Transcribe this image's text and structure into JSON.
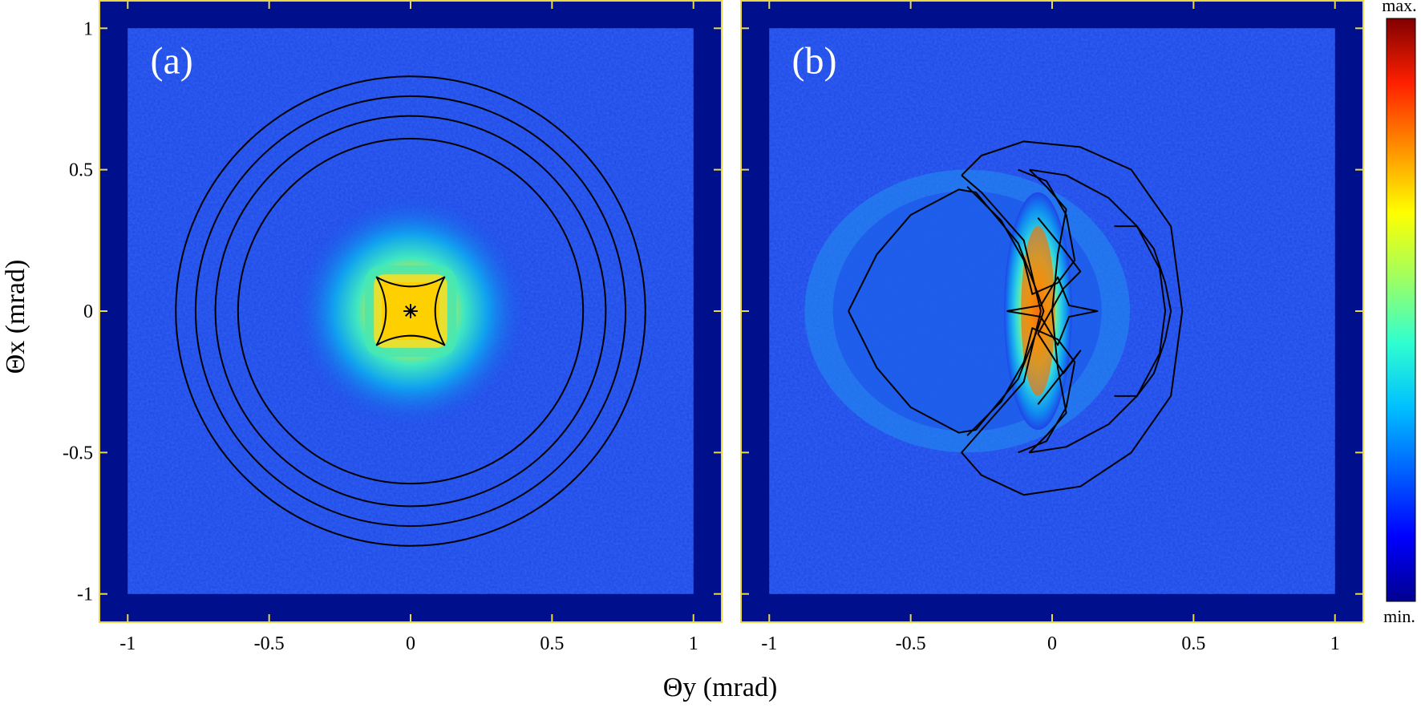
{
  "chart_data": [
    {
      "type": "heatmap",
      "panel_label": "(a)",
      "xlabel": "Θy (mrad)",
      "ylabel": "Θx (mrad)",
      "xlim": [
        -1.1,
        1.1
      ],
      "ylim": [
        -1.1,
        1.1
      ],
      "x_ticks": [
        "-1",
        "-0.5",
        "0",
        "0.5",
        "1"
      ],
      "y_ticks": [
        "1",
        "0.5",
        "0",
        "-0.5",
        "-1"
      ],
      "x_tick_values": [
        -1,
        -0.5,
        0,
        0.5,
        1
      ],
      "y_tick_values": [
        1,
        0.5,
        0,
        -0.5,
        -1
      ],
      "detector_extent": [
        -1,
        1
      ],
      "intensity_peak": {
        "center": [
          0,
          0
        ],
        "core_half_width": 0.12,
        "halo_radius": 0.42,
        "shape": "square"
      },
      "overlay_curves": [
        {
          "shape": "circle",
          "center": [
            0,
            0
          ],
          "radius": 0.61
        },
        {
          "shape": "circle",
          "center": [
            0,
            0
          ],
          "radius": 0.69
        },
        {
          "shape": "circle",
          "center": [
            0,
            0
          ],
          "radius": 0.76
        },
        {
          "shape": "circle",
          "center": [
            0,
            0
          ],
          "radius": 0.83
        },
        {
          "shape": "astroid",
          "center": [
            0,
            0
          ],
          "half_width": 0.12
        },
        {
          "shape": "star",
          "center": [
            0,
            0
          ],
          "size": 0.025
        }
      ]
    },
    {
      "type": "heatmap",
      "panel_label": "(b)",
      "xlabel": "Θy (mrad)",
      "xlim": [
        -1.1,
        1.1
      ],
      "ylim": [
        -1.1,
        1.1
      ],
      "x_ticks": [
        "-1",
        "-0.5",
        "0",
        "0.5",
        "1"
      ],
      "x_tick_values": [
        -1,
        -0.5,
        0,
        0.5,
        1
      ],
      "detector_extent": [
        -1,
        1
      ],
      "intensity_peak": {
        "shape": "crescent",
        "peak_y": -0.05,
        "peak_x": 0,
        "inner_radius": 0.3,
        "outer_radius": 0.5
      },
      "overlay_curves": [
        {
          "shape": "outer-lobe",
          "points": [
            [
              -0.72,
              0
            ],
            [
              -0.62,
              0.2
            ],
            [
              -0.5,
              0.34
            ],
            [
              -0.33,
              0.43
            ],
            [
              -0.27,
              0.42
            ],
            [
              -0.12,
              0.24
            ],
            [
              -0.05,
              0.06
            ],
            [
              -0.03,
              0
            ],
            [
              -0.05,
              -0.06
            ],
            [
              -0.12,
              -0.24
            ],
            [
              -0.27,
              -0.42
            ],
            [
              -0.33,
              -0.43
            ],
            [
              -0.5,
              -0.34
            ],
            [
              -0.62,
              -0.2
            ],
            [
              -0.72,
              0
            ]
          ]
        },
        {
          "shape": "big-arc",
          "points": [
            [
              -0.32,
              0.48
            ],
            [
              -0.25,
              0.55
            ],
            [
              -0.1,
              0.6
            ],
            [
              0.1,
              0.58
            ],
            [
              0.28,
              0.5
            ],
            [
              0.42,
              0.3
            ],
            [
              0.46,
              0
            ],
            [
              0.42,
              -0.3
            ],
            [
              0.28,
              -0.5
            ],
            [
              0.1,
              -0.62
            ],
            [
              -0.1,
              -0.65
            ],
            [
              -0.25,
              -0.58
            ],
            [
              -0.32,
              -0.5
            ],
            [
              -0.25,
              -0.42
            ],
            [
              -0.1,
              -0.25
            ],
            [
              -0.04,
              0
            ],
            [
              -0.1,
              0.25
            ],
            [
              -0.25,
              0.42
            ],
            [
              -0.32,
              0.48
            ]
          ]
        },
        {
          "shape": "inner-loop",
          "points": [
            [
              -0.08,
              0.5
            ],
            [
              0.05,
              0.48
            ],
            [
              0.2,
              0.4
            ],
            [
              0.3,
              0.3
            ],
            [
              0.38,
              0.15
            ],
            [
              0.4,
              0
            ],
            [
              0.38,
              -0.15
            ],
            [
              0.3,
              -0.3
            ],
            [
              0.2,
              -0.4
            ],
            [
              0.05,
              -0.48
            ],
            [
              -0.08,
              -0.5
            ],
            [
              -0.02,
              -0.44
            ],
            [
              0.05,
              -0.36
            ],
            [
              0.02,
              -0.2
            ],
            [
              0,
              0
            ],
            [
              0.02,
              0.2
            ],
            [
              0.05,
              0.36
            ],
            [
              -0.02,
              0.44
            ],
            [
              -0.08,
              0.5
            ]
          ]
        },
        {
          "shape": "side-lobe",
          "points": [
            [
              0.22,
              0.3
            ],
            [
              0.3,
              0.3
            ],
            [
              0.36,
              0.22
            ],
            [
              0.4,
              0.1
            ],
            [
              0.42,
              0
            ],
            [
              0.4,
              -0.1
            ],
            [
              0.36,
              -0.22
            ],
            [
              0.3,
              -0.3
            ],
            [
              0.22,
              -0.3
            ]
          ]
        },
        {
          "shape": "caustic-upper",
          "points": [
            [
              -0.3,
              0.44
            ],
            [
              -0.18,
              0.32
            ],
            [
              -0.1,
              0.18
            ],
            [
              -0.07,
              0.06
            ],
            [
              0.02,
              0.1
            ],
            [
              0.08,
              0.18
            ],
            [
              0.05,
              0.34
            ],
            [
              -0.02,
              0.46
            ],
            [
              -0.12,
              0.5
            ]
          ]
        },
        {
          "shape": "caustic-lower",
          "points": [
            [
              -0.3,
              -0.44
            ],
            [
              -0.18,
              -0.32
            ],
            [
              -0.1,
              -0.18
            ],
            [
              -0.07,
              -0.06
            ],
            [
              0.02,
              -0.1
            ],
            [
              0.08,
              -0.18
            ],
            [
              0.05,
              -0.34
            ],
            [
              -0.02,
              -0.46
            ],
            [
              -0.12,
              -0.5
            ]
          ]
        },
        {
          "shape": "astroid-center",
          "points": [
            [
              -0.16,
              0
            ],
            [
              -0.04,
              0.02
            ],
            [
              0.02,
              0.12
            ],
            [
              0.06,
              0.02
            ],
            [
              0.16,
              0
            ],
            [
              0.06,
              -0.02
            ],
            [
              0.02,
              -0.12
            ],
            [
              -0.04,
              -0.02
            ],
            [
              -0.16,
              0
            ]
          ]
        },
        {
          "shape": "caustic-lines",
          "points": [
            [
              -0.05,
              0.33
            ],
            [
              0.04,
              0.22
            ],
            [
              0.1,
              0.14
            ],
            [
              0.04,
              0.08
            ],
            [
              -0.05,
              -0.08
            ],
            [
              0.04,
              -0.22
            ],
            [
              0.1,
              -0.14
            ],
            [
              -0.05,
              -0.33
            ]
          ]
        }
      ]
    }
  ],
  "colorbar": {
    "max_label": "max.",
    "min_label": "min.",
    "colors": [
      "#00008f",
      "#0000ff",
      "#0060ff",
      "#00c0ff",
      "#30ffd0",
      "#a0ff60",
      "#ffff00",
      "#ff9000",
      "#ff2000",
      "#800000"
    ]
  },
  "colors": {
    "detector_background": "#1e46e8",
    "frame_fill": "#00108c",
    "frame_stroke": "#e8d84a"
  }
}
